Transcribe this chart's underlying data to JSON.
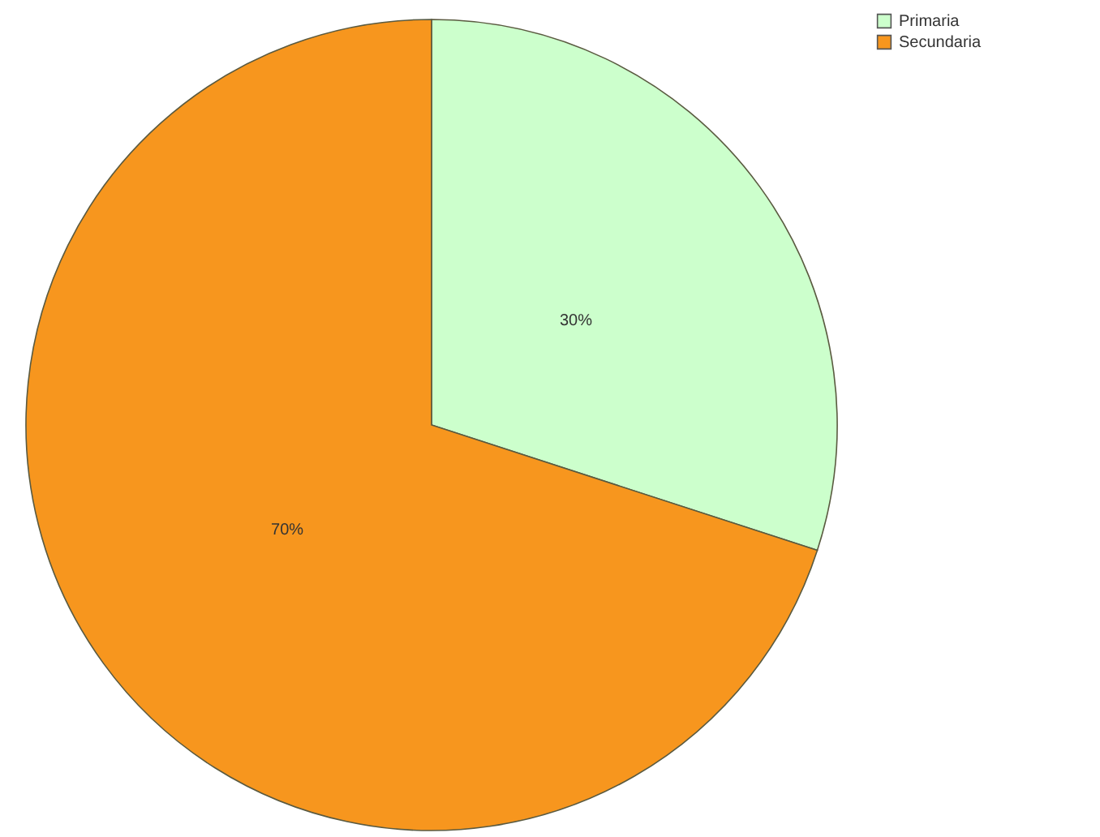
{
  "chart_data": {
    "type": "pie",
    "categories": [
      "Primaria",
      "Secundaria"
    ],
    "values": [
      30,
      70
    ],
    "value_labels": [
      "30%",
      "70%"
    ],
    "colors": [
      "#ccffcc",
      "#f7961e"
    ],
    "legend": "top right"
  }
}
